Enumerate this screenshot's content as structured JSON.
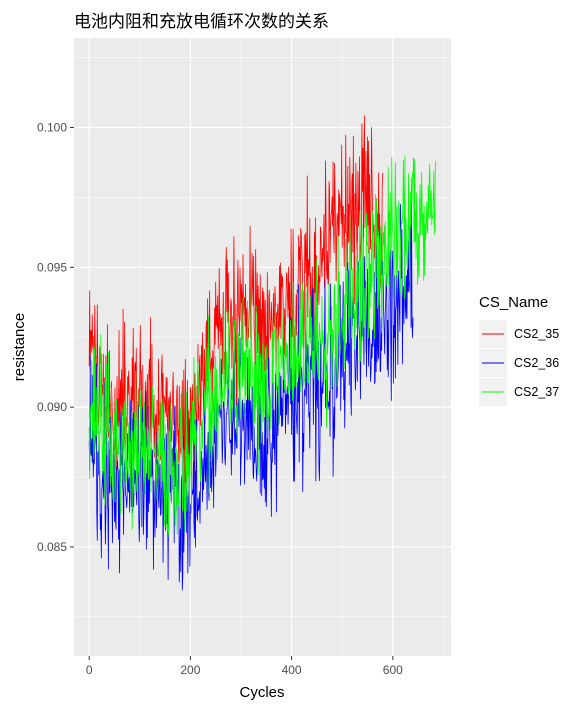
{
  "chart_data": {
    "type": "line",
    "title": "电池内阻和充放电循环次数的关系",
    "xlabel": "Cycles",
    "ylabel": "resistance",
    "xlim": [
      -30,
      715
    ],
    "ylim": [
      0.0811,
      0.1032
    ],
    "x_ticks": [
      0,
      200,
      400,
      600
    ],
    "y_ticks": [
      0.085,
      0.09,
      0.095,
      0.1
    ],
    "y_tick_labels": [
      "0.085",
      "0.090",
      "0.095",
      "0.100"
    ],
    "x_tick_labels": [
      "0",
      "200",
      "400",
      "600"
    ],
    "grid": true,
    "legend": {
      "title": "CS_Name",
      "position": "right"
    },
    "series": [
      {
        "name": "CS2_35",
        "color": "#ff0000",
        "noise": 0.0042,
        "seed": 35,
        "trend": [
          [
            0,
            0.0915
          ],
          [
            50,
            0.0895
          ],
          [
            100,
            0.0905
          ],
          [
            150,
            0.09
          ],
          [
            200,
            0.0895
          ],
          [
            250,
            0.093
          ],
          [
            300,
            0.0935
          ],
          [
            350,
            0.093
          ],
          [
            400,
            0.0935
          ],
          [
            450,
            0.0955
          ],
          [
            500,
            0.097
          ],
          [
            550,
            0.0975
          ],
          [
            580,
            0.0965
          ]
        ]
      },
      {
        "name": "CS2_36",
        "color": "#0000ff",
        "noise": 0.0045,
        "seed": 36,
        "trend": [
          [
            0,
            0.0895
          ],
          [
            50,
            0.087
          ],
          [
            100,
            0.0875
          ],
          [
            150,
            0.087
          ],
          [
            200,
            0.0865
          ],
          [
            250,
            0.089
          ],
          [
            300,
            0.0895
          ],
          [
            350,
            0.089
          ],
          [
            400,
            0.0905
          ],
          [
            450,
            0.0905
          ],
          [
            500,
            0.092
          ],
          [
            550,
            0.093
          ],
          [
            600,
            0.0935
          ],
          [
            640,
            0.095
          ]
        ]
      },
      {
        "name": "CS2_37",
        "color": "#00ff00",
        "noise": 0.004,
        "seed": 37,
        "trend": [
          [
            0,
            0.0905
          ],
          [
            50,
            0.0885
          ],
          [
            100,
            0.0885
          ],
          [
            150,
            0.088
          ],
          [
            200,
            0.088
          ],
          [
            250,
            0.0905
          ],
          [
            300,
            0.091
          ],
          [
            350,
            0.091
          ],
          [
            400,
            0.092
          ],
          [
            450,
            0.0925
          ],
          [
            500,
            0.0935
          ],
          [
            550,
            0.0945
          ],
          [
            600,
            0.096
          ],
          [
            650,
            0.097
          ],
          [
            685,
            0.0975
          ]
        ]
      }
    ]
  }
}
